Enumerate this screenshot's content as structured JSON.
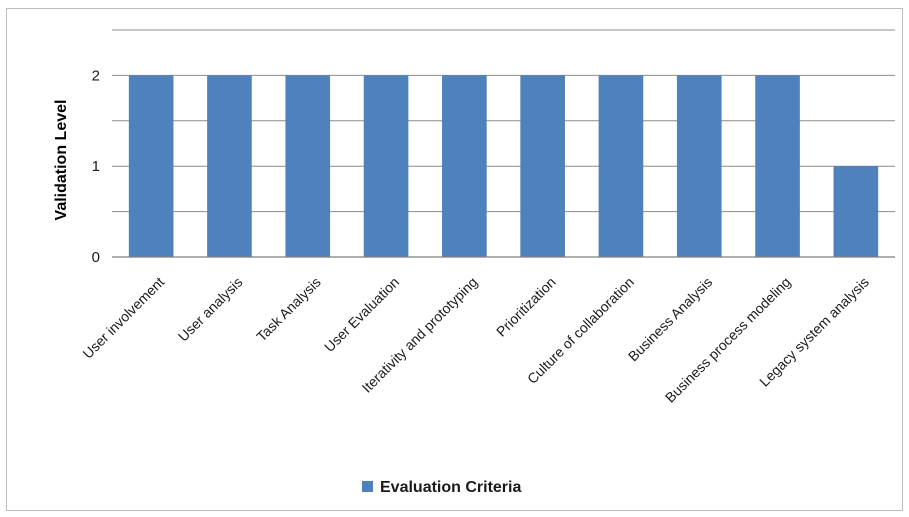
{
  "chart_data": {
    "type": "bar",
    "categories": [
      "User involvement",
      "User analysis",
      "Task Analysis",
      "User Evaluation",
      "Iterativity and prototyping",
      "Prioritization",
      "Culture of collaboration",
      "Business Analysis",
      "Business process modeling",
      "Legacy system analysis"
    ],
    "series": [
      {
        "name": "Evaluation Criteria",
        "values": [
          2,
          2,
          2,
          2,
          2,
          2,
          2,
          2,
          2,
          1
        ]
      }
    ],
    "title": "",
    "xlabel": "",
    "ylabel": "Validation Level",
    "ylim": [
      0,
      2.5
    ],
    "yticks": [
      0,
      1,
      2
    ],
    "grid": true,
    "legend_position": "bottom",
    "colors": {
      "bar": "#4f81bd",
      "grid": "#8c8c8c",
      "axis": "#7f7f7f"
    }
  }
}
